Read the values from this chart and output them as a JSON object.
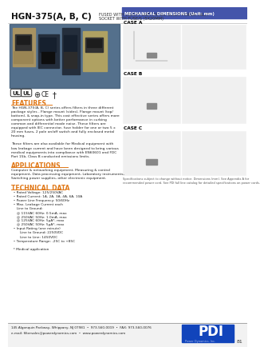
{
  "title_bold": "HGN-375(A, B, C)",
  "title_desc_line1": "FUSED WITH ON/OFF SWITCH, IEC 60320 POWER INLET",
  "title_desc_line2": "SOCKET WITH FUSE/S (5X20MM)",
  "bg_color": "#ffffff",
  "photo_bg": "#6080a0",
  "section_color_orange": "#e07818",
  "mech_dim_title": "MECHANICAL DIMENSIONS (Unit: mm)",
  "mech_dim_bg": "#4455aa",
  "case_a_label": "CASE A",
  "case_b_label": "CASE B",
  "case_c_label": "CASE C",
  "right_panel_bg": "#d8d8d8",
  "features_title": "FEATURES",
  "features_text": "The HGN-375(A, B, C) series offers filters in three different\npackage styles - Flange mount (sides), Flange mount (top/\nbottom), & snap-in type. This cost effective series offers more\ncomponent options with better performance in curbing\ncommon and differential mode noise. These filters are\nequipped with IEC connector, fuse holder for one or two 5 x\n20 mm fuses, 2 pole on/off switch and fully enclosed metal\nhousing.\n\nThese filters are also available for Medical equipment with\nlow leakage current and have been designed to bring various\nmedical equipments into compliance with EN60601 and FDC\nPart 15b, Class B conducted emissions limits.",
  "applications_title": "APPLICATIONS",
  "applications_text": "Computer & networking equipment, Measuring & control\nequipment, Data processing equipment, Laboratory instruments,\nSwitching power supplies, other electronic equipment.",
  "tech_title": "TECHNICAL DATA",
  "tech_text": "  • Rated Voltage: 125/250VAC\n  • Rated Current: 1A, 2A, 3A, 4A, 6A, 10A\n  • Power Line Frequency: 50/60Hz\n  • Max. Leakage Current each\n     Line to Ground:\n     @ 115VAC 60Hz: 0.5mA, max\n     @ 250VAC 50Hz: 1.0mA, max\n     @ 125VAC 60Hz: 5μA*, max\n     @ 250VAC 50Hz: 5μA*, max\n  • Input Rating (one minute)\n        Line to Ground: 2250VDC\n        Line to Line: 1450VDC\n  • Temperature Range: -25C to +85C\n\n  * Medical application",
  "footer_addr": "145 Algonquin Parkway, Whippany, NJ 07981  •  973-560-0019  •  FAX: 973-560-0076",
  "footer_email": "e-mail: filtersales@powerdynamics.com  •  www.powerdynamics.com",
  "footer_web_bold": "www.powerdynamics.com",
  "page_num": "81",
  "spec_note": "Specifications subject to change without notice. Dimensions (mm). See Appendix A for\nrecommended power cord. See PDI full line catalog for detailed specifications on power cords.",
  "pdi_logo_bg": "#1144bb",
  "pdi_text": "PDI",
  "pdi_sub": "Power Dynamics, Inc."
}
